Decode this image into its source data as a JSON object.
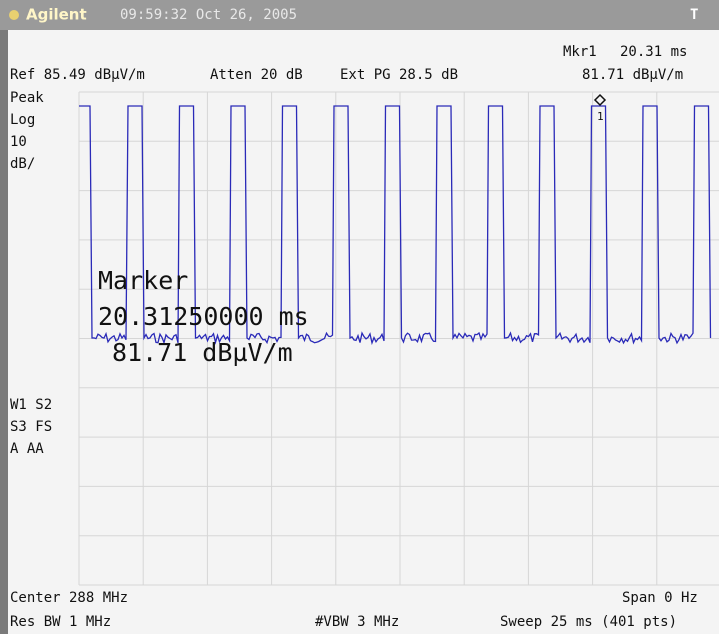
{
  "header": {
    "brand": "Agilent",
    "timestamp": "09:59:32  Oct 26, 2005",
    "indicator": "T"
  },
  "settings": {
    "reference": "Ref 85.49 dBµV/m",
    "attenuation": "Atten 20 dB",
    "external_gain": "Ext PG 28.5 dB"
  },
  "marker_readout": {
    "name": "Mkr1",
    "time": "20.31 ms",
    "level": "81.71 dBµV/m",
    "number": "1"
  },
  "left_labels": {
    "detector": "Peak",
    "scale_type": "Log",
    "scale_value": "10",
    "scale_unit": "dB/",
    "trace_modes": [
      "W1 S2",
      "S3 FS",
      "A  AA"
    ]
  },
  "marker_box": {
    "title": "Marker",
    "time": "20.31250000 ms",
    "level": "81.71 dBµV/m"
  },
  "footer": {
    "center": "Center 288 MHz",
    "span": "Span 0 Hz",
    "res_bw": "Res BW 1 MHz",
    "vbw": "#VBW 3 MHz",
    "sweep": "Sweep 25 ms (401 pts)"
  }
}
